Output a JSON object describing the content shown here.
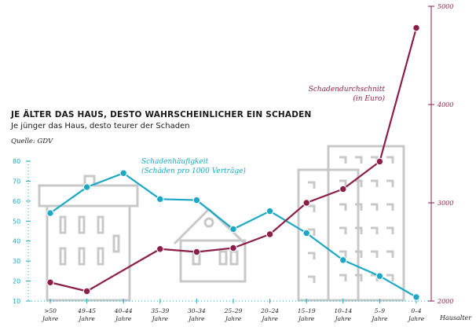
{
  "header": {
    "title": "JE ÄLTER DAS HAUS, DESTO WAHRSCHEINLICHER EIN SCHADEN",
    "subtitle": "Je jünger das Haus, desto teurer der Schaden",
    "source": "Quelle: GDV"
  },
  "colors": {
    "frequency": "#1aa8c4",
    "average": "#8c1e4a",
    "houses": "#c8c8c8"
  },
  "chart_data": {
    "type": "line",
    "xlabel": "Hausalter",
    "categories": [
      [
        ">50",
        "Jahre"
      ],
      [
        "49–45",
        "Jahre"
      ],
      [
        "40–44",
        "Jahre"
      ],
      [
        "35–39",
        "Jahre"
      ],
      [
        "30–34",
        "Jahre"
      ],
      [
        "25–29",
        "Jahre"
      ],
      [
        "20–24",
        "Jahre"
      ],
      [
        "15–19",
        "Jahre"
      ],
      [
        "10–14",
        "Jahre"
      ],
      [
        "5–9",
        "Jahre"
      ],
      [
        "0–4",
        "Jahre"
      ]
    ],
    "y_left": {
      "min": 10,
      "max": 80,
      "ticks": [
        10,
        20,
        30,
        40,
        50,
        60,
        70,
        80
      ]
    },
    "y_right": {
      "min": 2000,
      "max": 5000,
      "ticks": [
        2000,
        3000,
        4000,
        5000
      ]
    },
    "series": [
      {
        "name": [
          "Schadenhäufigkeit",
          "(Schäden pro 1000 Verträge)"
        ],
        "axis": "left",
        "values": [
          54,
          67,
          74,
          61,
          60.5,
          46,
          55,
          44,
          30.5,
          22.5,
          12
        ]
      },
      {
        "name": [
          "Schadendurchschnitt",
          "(in Euro)"
        ],
        "axis": "right",
        "values": [
          2190,
          2100,
          null,
          2530,
          2500,
          2540,
          2680,
          3000,
          3140,
          3420,
          4780
        ]
      }
    ]
  }
}
